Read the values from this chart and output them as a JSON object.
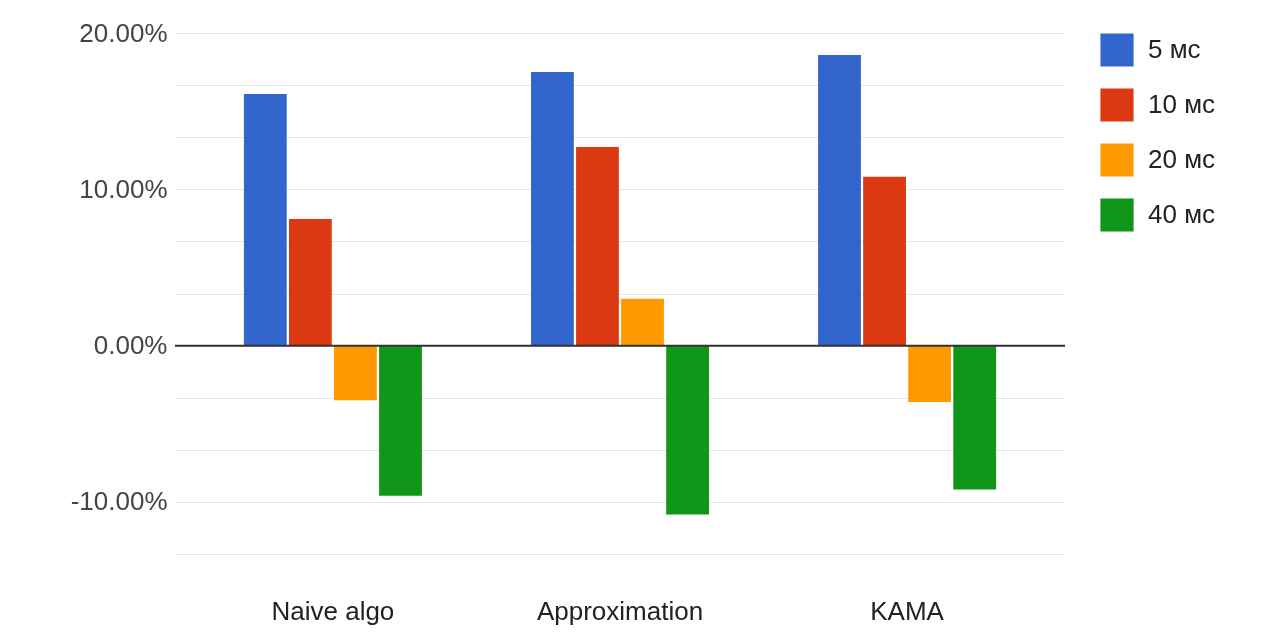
{
  "chart_data": {
    "type": "bar",
    "categories": [
      "Naive algo",
      "Approximation",
      "KAMA"
    ],
    "series": [
      {
        "name": "5 мс",
        "color": "#3366cc",
        "values": [
          16.1,
          17.5,
          18.6
        ]
      },
      {
        "name": "10 мс",
        "color": "#dc3912",
        "values": [
          8.1,
          12.7,
          10.8
        ]
      },
      {
        "name": "20 мс",
        "color": "#ff9900",
        "values": [
          -3.5,
          3.0,
          -3.6
        ]
      },
      {
        "name": "40 мс",
        "color": "#109618",
        "values": [
          -9.6,
          -10.8,
          -9.2
        ]
      }
    ],
    "ylim": [
      -13.33,
      20
    ],
    "yticks": [
      {
        "value": 20,
        "label": "20.00%"
      },
      {
        "value": 16.67,
        "label": null
      },
      {
        "value": 13.33,
        "label": null
      },
      {
        "value": 10,
        "label": "10.00%"
      },
      {
        "value": 6.67,
        "label": null
      },
      {
        "value": 3.33,
        "label": null
      },
      {
        "value": 0,
        "label": "0.00%"
      },
      {
        "value": -3.33,
        "label": null
      },
      {
        "value": -6.67,
        "label": null
      },
      {
        "value": -10,
        "label": "-10.00%"
      },
      {
        "value": -13.33,
        "label": null
      }
    ],
    "ref_lines": [
      {
        "axis": "y",
        "value": 0,
        "label": null,
        "color": "#333333"
      }
    ],
    "grid": "y",
    "legend": "top right"
  }
}
